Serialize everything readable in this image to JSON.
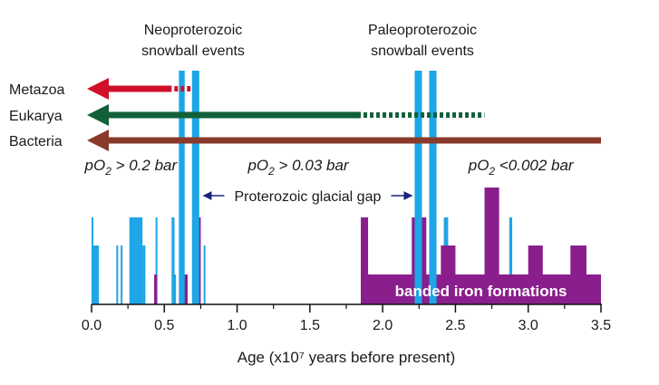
{
  "chart_data": {
    "type": "bar",
    "xlabel": "Age (x10⁷ years before present)",
    "xlim": [
      0,
      3.5
    ],
    "x_ticks": [
      "0.0",
      "0.5",
      "1.0",
      "1.5",
      "2.0",
      "2.5",
      "3.0",
      "3.5"
    ],
    "grid": false,
    "colors": {
      "glacial": "#1ea6e6",
      "iron": "#8a1e8c",
      "metazoa": "#d0102a",
      "eukarya": "#12603a",
      "bacteria": "#8a3a2a",
      "gap_arrow": "#1a237e",
      "banded_text": "#ffffff"
    },
    "snowball_labels": [
      {
        "line1": "Neoproterozoic",
        "line2": "snowball events"
      },
      {
        "line1": "Paleoproterozoic",
        "line2": "snowball events"
      }
    ],
    "snowball_events": [
      {
        "start": 0.6,
        "end": 0.64
      },
      {
        "start": 0.69,
        "end": 0.74
      },
      {
        "start": 2.22,
        "end": 2.27
      },
      {
        "start": 2.32,
        "end": 2.37
      }
    ],
    "lineages": [
      {
        "name": "Metazoa",
        "color": "#d0102a",
        "solid_to": 0.55,
        "dotted_to": 0.68
      },
      {
        "name": "Eukarya",
        "color": "#12603a",
        "solid_to": 1.85,
        "dotted_to": 2.7
      },
      {
        "name": "Bacteria",
        "color": "#8a3a2a",
        "solid_to": 3.5,
        "dotted_to": 3.5
      }
    ],
    "oxygen_labels": [
      {
        "prefix": "pO",
        "sub": "2",
        "suffix": " > 0.2 bar",
        "x": 0.27
      },
      {
        "prefix": "pO",
        "sub": "2",
        "suffix": " > 0.03 bar",
        "x": 1.42
      },
      {
        "prefix": "pO",
        "sub": "2",
        "suffix": " <0.002 bar",
        "x": 2.95
      }
    ],
    "glacial_gap": {
      "label": "Proterozoic glacial gap",
      "from": 0.77,
      "to": 2.2
    },
    "glacial_deposits": [
      {
        "start": 0.0,
        "end": 0.01,
        "level": 3
      },
      {
        "start": 0.0,
        "end": 0.05,
        "level": 2
      },
      {
        "start": 0.17,
        "end": 0.18,
        "level": 2
      },
      {
        "start": 0.2,
        "end": 0.21,
        "level": 2
      },
      {
        "start": 0.26,
        "end": 0.35,
        "level": 3
      },
      {
        "start": 0.35,
        "end": 0.37,
        "level": 2
      },
      {
        "start": 0.44,
        "end": 0.45,
        "level": 3
      },
      {
        "start": 0.55,
        "end": 0.57,
        "level": 3
      },
      {
        "start": 0.56,
        "end": 0.58,
        "level": 1
      },
      {
        "start": 0.77,
        "end": 0.78,
        "level": 2
      },
      {
        "start": 2.42,
        "end": 2.45,
        "level": 3
      },
      {
        "start": 2.87,
        "end": 2.89,
        "level": 3
      }
    ],
    "banded_iron_label": "banded iron formations",
    "banded_iron": [
      {
        "start": 0.43,
        "end": 0.45,
        "level": 1
      },
      {
        "start": 0.62,
        "end": 0.66,
        "level": 1
      },
      {
        "start": 0.71,
        "end": 0.75,
        "level": 3
      },
      {
        "start": 1.85,
        "end": 3.5,
        "level": 1
      },
      {
        "start": 1.85,
        "end": 1.9,
        "level": 3
      },
      {
        "start": 2.2,
        "end": 2.3,
        "level": 3
      },
      {
        "start": 2.4,
        "end": 2.5,
        "level": 2
      },
      {
        "start": 2.7,
        "end": 2.8,
        "level": 4
      },
      {
        "start": 3.0,
        "end": 3.1,
        "level": 2
      },
      {
        "start": 3.29,
        "end": 3.4,
        "level": 2
      }
    ]
  }
}
